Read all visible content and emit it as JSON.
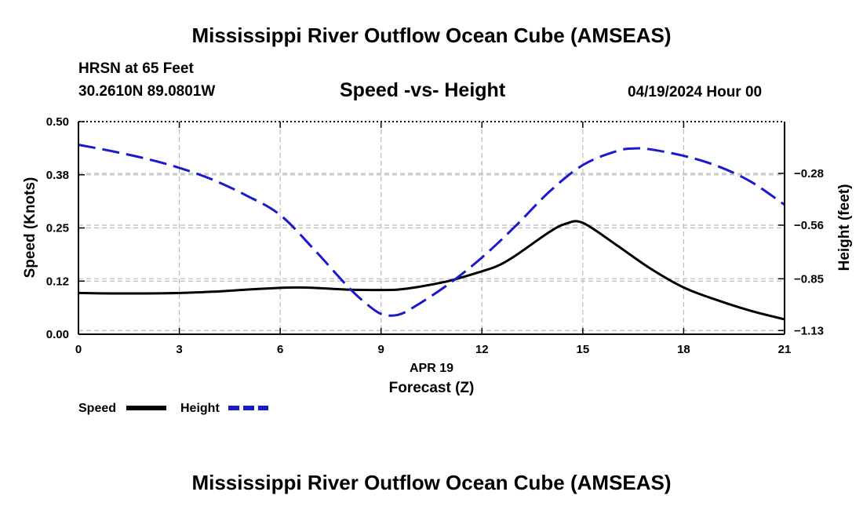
{
  "header": {
    "title": "Mississippi River Outflow Ocean Cube (AMSEAS)",
    "station": "HRSN at 65 Feet",
    "coordinates": "30.2610N  89.0801W",
    "chart_title": "Speed -vs- Height",
    "date": "04/19/2024 Hour 00"
  },
  "footer": {
    "title": "Mississippi River Outflow Ocean Cube (AMSEAS)"
  },
  "colors": {
    "speed": "#000000",
    "height": "#1a1acc",
    "grid": "#bbbbbb"
  },
  "chart_data": {
    "type": "line",
    "title": "Speed -vs- Height",
    "xlabel": "Forecast (Z)",
    "xlabel_date": "APR 19",
    "ylabel": "Speed (Knots)",
    "y2label": "Height (feet)",
    "xlim": [
      0,
      21
    ],
    "ylim": [
      0,
      0.5
    ],
    "y2lim": [
      -1.15,
      0.0
    ],
    "x_ticks": [
      0,
      3,
      6,
      9,
      12,
      15,
      18,
      21
    ],
    "x_tick_labels": [
      "0",
      "3",
      "6",
      "9",
      "12",
      "15",
      "18",
      "21"
    ],
    "y_ticks": [
      0.0,
      0.125,
      0.25,
      0.375,
      0.5
    ],
    "y_tick_labels": [
      "0.00",
      "0.12",
      "0.25",
      "0.38",
      "0.50"
    ],
    "y2_ticks": [
      -1.13,
      -0.85,
      -0.56,
      -0.28
    ],
    "y2_tick_labels": [
      "−1.13",
      "−0.85",
      "−0.56",
      "−0.28"
    ],
    "grid": true,
    "legend": [
      {
        "name": "Speed",
        "style": "solid"
      },
      {
        "name": "Height",
        "style": "dashed"
      }
    ],
    "series": [
      {
        "name": "Speed",
        "axis": "left",
        "style": "solid",
        "x": [
          0,
          1,
          2,
          3,
          4,
          5,
          6,
          6.5,
          7,
          8,
          9,
          9.5,
          10,
          11,
          12,
          12.5,
          13,
          14,
          14.5,
          15,
          16,
          17,
          18,
          19,
          20,
          21
        ],
        "y": [
          0.097,
          0.096,
          0.096,
          0.097,
          0.1,
          0.105,
          0.109,
          0.11,
          0.109,
          0.105,
          0.104,
          0.105,
          0.11,
          0.125,
          0.148,
          0.162,
          0.185,
          0.24,
          0.26,
          0.262,
          0.21,
          0.155,
          0.11,
          0.08,
          0.055,
          0.035
        ]
      },
      {
        "name": "Height",
        "axis": "right",
        "style": "dashed",
        "x": [
          0,
          1,
          2,
          3,
          4,
          5,
          6,
          7,
          8,
          8.5,
          9,
          9.5,
          10,
          11,
          12,
          13,
          14,
          15,
          16,
          16.5,
          17,
          18,
          19,
          20,
          21
        ],
        "y": [
          -0.125,
          -0.16,
          -0.2,
          -0.25,
          -0.315,
          -0.4,
          -0.505,
          -0.69,
          -0.89,
          -0.975,
          -1.04,
          -1.045,
          -1.0,
          -0.88,
          -0.735,
          -0.565,
          -0.38,
          -0.235,
          -0.16,
          -0.145,
          -0.15,
          -0.185,
          -0.24,
          -0.325,
          -0.45
        ]
      }
    ]
  }
}
